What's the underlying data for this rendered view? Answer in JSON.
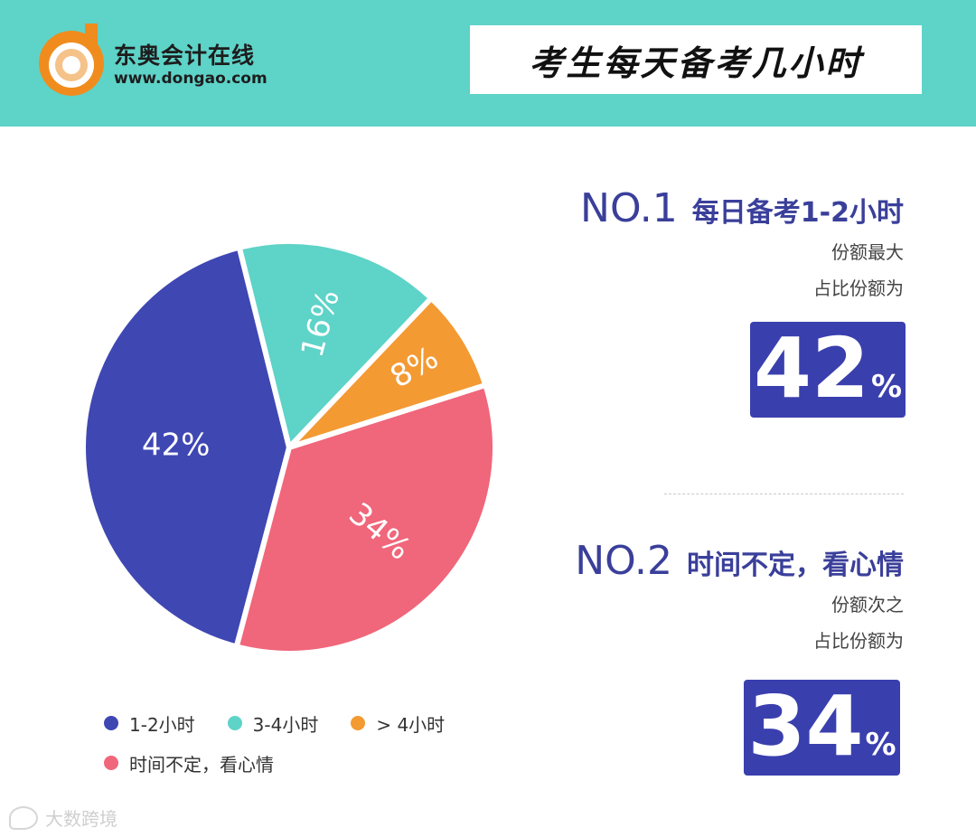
{
  "brand": {
    "name": "东奥会计在线",
    "url": "www.dongao.com",
    "colors": {
      "teal": "#5ed3c8",
      "orange": "#f08c1e"
    }
  },
  "title": "考生每天备考几小时",
  "chart_data": {
    "type": "pie",
    "title": "",
    "slices": [
      {
        "label": "1-2小时",
        "value": 42,
        "display": "42%",
        "color": "#3f47b3"
      },
      {
        "label": "3-4小时",
        "value": 16,
        "display": "16%",
        "color": "#5ed3c8"
      },
      {
        "label": "> 4小时",
        "value": 8,
        "display": "8%",
        "color": "#f39a33"
      },
      {
        "label": "时间不定，看心情",
        "value": 34,
        "display": "34%",
        "color": "#f0667a"
      }
    ],
    "legend_position": "bottom"
  },
  "rankings": [
    {
      "no": "NO.1",
      "title": "每日备考1-2小时",
      "sub1": "份额最大",
      "sub2": "占比份额为",
      "value": "42",
      "unit": "%"
    },
    {
      "no": "NO.2",
      "title": "时间不定，看心情",
      "sub1": "份额次之",
      "sub2": "占比份额为",
      "value": "34",
      "unit": "%"
    }
  ],
  "watermark": "大数跨境"
}
